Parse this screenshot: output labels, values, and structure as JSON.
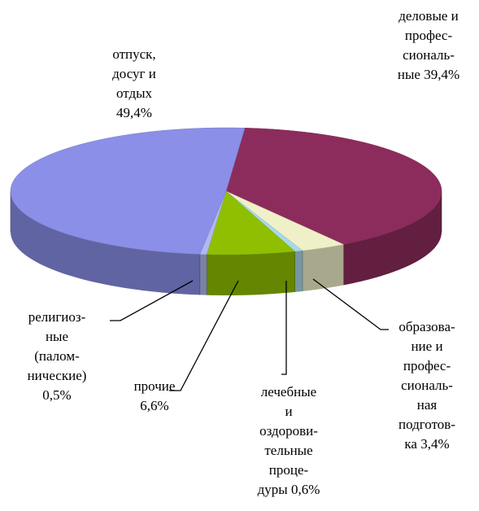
{
  "chart_data": {
    "type": "pie",
    "categories": [
      "деловые и\nпрофес-\nсиональ-\nные",
      "образова-\nние и\nпрофес-\nсиональ-\nная\nподготов-\nка",
      "лечебные\nи\nоздорови-\nтельные\nпроце-\nдуры",
      "прочие",
      "религиоз-\nные\n(палом-\nнические)",
      "отпуск,\nдосуг и\nотдых"
    ],
    "values": [
      39.4,
      3.4,
      0.6,
      6.6,
      0.5,
      49.4
    ],
    "value_labels": [
      "39,4%",
      "3,4%",
      "0,6%",
      "6,6%",
      "0,5%",
      "49,4%"
    ],
    "colors": [
      "#8c2c5c",
      "#f0f0c8",
      "#a8d8e8",
      "#8fbf00",
      "#b0b8f0",
      "#8b8fe8"
    ]
  }
}
